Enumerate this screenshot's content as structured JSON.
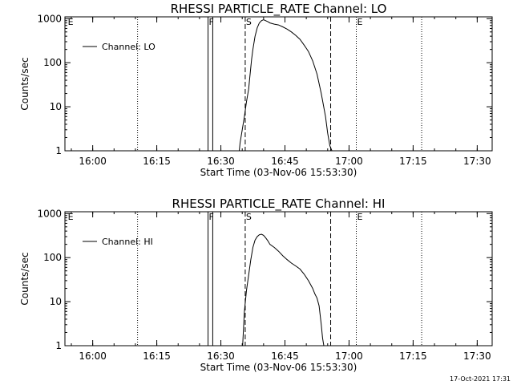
{
  "footer_timestamp": "17-Oct-2021 17:31",
  "chart_data": [
    {
      "type": "line",
      "title": "RHESSI PARTICLE_RATE Channel: LO",
      "xlabel": "Start Time (03-Nov-06 15:53:30)",
      "ylabel": "Counts/sec",
      "x_unit": "minutes after 15:53:30",
      "xlim": [
        0,
        100
      ],
      "ylim": [
        1,
        1100
      ],
      "yscale": "log",
      "x_tick_labels": [
        "16:00",
        "16:15",
        "16:30",
        "16:45",
        "17:00",
        "17:15",
        "17:30"
      ],
      "x_tick_values": [
        6.5,
        21.5,
        36.5,
        51.5,
        66.5,
        81.5,
        96.5
      ],
      "y_tick_labels": [
        "1",
        "10",
        "100",
        "1000"
      ],
      "y_tick_values": [
        1,
        10,
        100,
        1000
      ],
      "legend": {
        "label": "Channel: LO",
        "position": "top-left"
      },
      "markers": [
        {
          "label": "E",
          "x": 0.5,
          "style": "none"
        },
        {
          "label": "",
          "x": 17.0,
          "style": "dotted"
        },
        {
          "label": "F",
          "x": 33.5,
          "style": "solid"
        },
        {
          "label": "",
          "x": 34.6,
          "style": "solid"
        },
        {
          "label": "S",
          "x": 42.2,
          "style": "dashed"
        },
        {
          "label": "",
          "x": 62.2,
          "style": "dashed"
        },
        {
          "label": "E",
          "x": 68.2,
          "style": "dotted"
        },
        {
          "label": "",
          "x": 83.5,
          "style": "dotted"
        }
      ],
      "series": [
        {
          "name": "Channel: LO",
          "x": [
            40.8,
            41.0,
            41.5,
            42.0,
            42.5,
            43.0,
            43.3,
            43.7,
            44.0,
            44.5,
            45.0,
            45.5,
            46.0,
            46.5,
            47.0,
            47.5,
            48.0,
            49.0,
            50.0,
            51.0,
            52.0,
            53.0,
            54.0,
            55.0,
            56.0,
            57.0,
            58.0,
            59.0,
            60.0,
            61.0,
            61.5,
            62.0,
            62.5
          ],
          "y": [
            1,
            1.5,
            3,
            6,
            13,
            25,
            50,
            120,
            200,
            400,
            620,
            800,
            900,
            950,
            900,
            850,
            800,
            750,
            720,
            650,
            580,
            500,
            420,
            340,
            250,
            180,
            110,
            55,
            20,
            6,
            2.5,
            1.3,
            1
          ]
        }
      ]
    },
    {
      "type": "line",
      "title": "RHESSI PARTICLE_RATE Channel: HI",
      "xlabel": "Start Time (03-Nov-06 15:53:30)",
      "ylabel": "Counts/sec",
      "x_unit": "minutes after 15:53:30",
      "xlim": [
        0,
        100
      ],
      "ylim": [
        1,
        1100
      ],
      "yscale": "log",
      "x_tick_labels": [
        "16:00",
        "16:15",
        "16:30",
        "16:45",
        "17:00",
        "17:15",
        "17:30"
      ],
      "x_tick_values": [
        6.5,
        21.5,
        36.5,
        51.5,
        66.5,
        81.5,
        96.5
      ],
      "y_tick_labels": [
        "1",
        "10",
        "100",
        "1000"
      ],
      "y_tick_values": [
        1,
        10,
        100,
        1000
      ],
      "legend": {
        "label": "Channel: HI",
        "position": "top-left"
      },
      "markers": [
        {
          "label": "E",
          "x": 0.5,
          "style": "none"
        },
        {
          "label": "",
          "x": 17.0,
          "style": "dotted"
        },
        {
          "label": "F",
          "x": 33.5,
          "style": "solid"
        },
        {
          "label": "",
          "x": 34.6,
          "style": "solid"
        },
        {
          "label": "S",
          "x": 42.2,
          "style": "dashed"
        },
        {
          "label": "",
          "x": 62.2,
          "style": "dashed"
        },
        {
          "label": "E",
          "x": 68.2,
          "style": "dotted"
        },
        {
          "label": "",
          "x": 83.5,
          "style": "dotted"
        }
      ],
      "series": [
        {
          "name": "Channel: HI",
          "x": [
            41.6,
            42.0,
            42.5,
            43.0,
            43.5,
            44.0,
            44.5,
            45.0,
            45.5,
            46.0,
            46.5,
            47.0,
            47.5,
            48.0,
            49.0,
            50.0,
            51.0,
            52.0,
            53.0,
            54.0,
            55.0,
            56.0,
            57.0,
            58.0,
            58.5,
            59.0,
            59.5,
            60.0,
            60.3,
            60.6
          ],
          "y": [
            1,
            6,
            18,
            40,
            90,
            170,
            250,
            300,
            330,
            340,
            320,
            280,
            240,
            200,
            170,
            140,
            110,
            90,
            75,
            65,
            55,
            42,
            30,
            20,
            15,
            12,
            8,
            3,
            1.5,
            1
          ]
        }
      ]
    }
  ]
}
